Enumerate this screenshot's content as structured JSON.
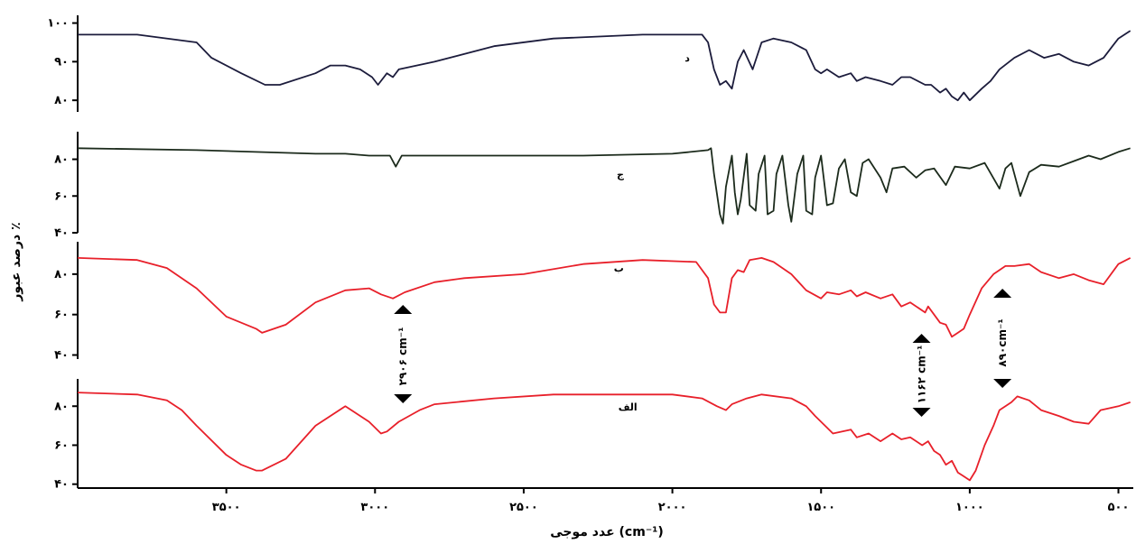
{
  "chart_data": {
    "type": "line",
    "xlabel": "عدد موجی (cm⁻¹)",
    "ylabel": "درصد عبور ٪",
    "xlim": [
      4000,
      450
    ],
    "x_ticks": [
      {
        "value": 3500,
        "label": "۳۵۰۰"
      },
      {
        "value": 3000,
        "label": "۳۰۰۰"
      },
      {
        "value": 2500,
        "label": "۲۵۰۰"
      },
      {
        "value": 2000,
        "label": "۲۰۰۰"
      },
      {
        "value": 1500,
        "label": "۱۵۰۰"
      },
      {
        "value": 1000,
        "label": "۱۰۰۰"
      },
      {
        "value": 500,
        "label": "۵۰۰"
      }
    ],
    "panels": [
      {
        "name": "د",
        "color": "#1c1c3c",
        "ylim": [
          77,
          102
        ],
        "y_ticks": [
          {
            "value": 100,
            "label": "۱۰۰"
          },
          {
            "value": 90,
            "label": "۹۰"
          },
          {
            "value": 80,
            "label": "۸۰"
          }
        ],
        "x": [
          4000,
          3800,
          3600,
          3550,
          3450,
          3370,
          3320,
          3200,
          3150,
          3100,
          3050,
          3010,
          2990,
          2960,
          2940,
          2920,
          2800,
          2600,
          2400,
          2100,
          1900,
          1880,
          1860,
          1840,
          1820,
          1800,
          1780,
          1760,
          1730,
          1700,
          1660,
          1600,
          1550,
          1520,
          1500,
          1480,
          1440,
          1400,
          1380,
          1350,
          1300,
          1260,
          1230,
          1200,
          1150,
          1130,
          1100,
          1080,
          1060,
          1040,
          1020,
          1000,
          960,
          930,
          900,
          850,
          800,
          750,
          700,
          650,
          600,
          550,
          520,
          500,
          460
        ],
        "y": [
          97,
          97,
          95,
          91,
          87,
          84,
          84,
          87,
          89,
          89,
          88,
          86,
          84,
          87,
          86,
          88,
          90,
          94,
          96,
          97,
          97,
          95,
          88,
          84,
          85,
          83,
          90,
          93,
          88,
          95,
          96,
          95,
          93,
          88,
          87,
          88,
          86,
          87,
          85,
          86,
          85,
          84,
          86,
          86,
          84,
          84,
          82,
          83,
          81,
          80,
          82,
          80,
          83,
          85,
          88,
          91,
          93,
          91,
          92,
          90,
          89,
          91,
          94,
          96,
          98
        ]
      },
      {
        "name": "ج",
        "color": "#1c2b1c",
        "ylim": [
          40,
          95
        ],
        "y_ticks": [
          {
            "value": 80,
            "label": "۸۰"
          },
          {
            "value": 60,
            "label": "۶۰"
          },
          {
            "value": 40,
            "label": "۴۰"
          }
        ],
        "x": [
          4000,
          3600,
          3200,
          3100,
          3020,
          2950,
          2930,
          2910,
          2850,
          2600,
          2300,
          2000,
          1880,
          1870,
          1860,
          1840,
          1830,
          1820,
          1800,
          1790,
          1780,
          1770,
          1750,
          1740,
          1720,
          1710,
          1690,
          1680,
          1660,
          1650,
          1630,
          1610,
          1600,
          1580,
          1560,
          1550,
          1530,
          1520,
          1500,
          1480,
          1460,
          1440,
          1420,
          1400,
          1380,
          1360,
          1340,
          1300,
          1280,
          1260,
          1220,
          1180,
          1150,
          1120,
          1080,
          1050,
          1000,
          950,
          900,
          880,
          860,
          830,
          800,
          760,
          700,
          650,
          600,
          560,
          500,
          460
        ],
        "y": [
          86,
          85,
          83,
          83,
          82,
          82,
          76,
          82,
          82,
          82,
          82,
          83,
          85,
          86,
          72,
          50,
          45,
          65,
          82,
          62,
          50,
          58,
          83,
          55,
          52,
          72,
          82,
          50,
          52,
          72,
          82,
          55,
          46,
          72,
          82,
          52,
          50,
          70,
          82,
          55,
          56,
          75,
          80,
          62,
          60,
          78,
          80,
          70,
          62,
          75,
          76,
          70,
          74,
          75,
          66,
          76,
          75,
          78,
          64,
          75,
          78,
          60,
          73,
          77,
          76,
          79,
          82,
          80,
          84,
          86
        ]
      },
      {
        "name": "ب",
        "color": "#e8202a",
        "ylim": [
          38,
          96
        ],
        "y_ticks": [
          {
            "value": 80,
            "label": "۸۰"
          },
          {
            "value": 60,
            "label": "۶۰"
          },
          {
            "value": 40,
            "label": "۴۰"
          }
        ],
        "x": [
          4000,
          3800,
          3700,
          3600,
          3500,
          3400,
          3380,
          3300,
          3200,
          3100,
          3020,
          2980,
          2940,
          2900,
          2800,
          2700,
          2500,
          2300,
          2100,
          1920,
          1880,
          1860,
          1840,
          1820,
          1800,
          1780,
          1760,
          1740,
          1700,
          1660,
          1600,
          1550,
          1500,
          1480,
          1440,
          1400,
          1380,
          1350,
          1300,
          1260,
          1230,
          1200,
          1150,
          1140,
          1100,
          1080,
          1060,
          1040,
          1020,
          1000,
          960,
          920,
          880,
          850,
          800,
          760,
          700,
          650,
          600,
          550,
          500,
          460
        ],
        "y": [
          88,
          87,
          83,
          73,
          59,
          53,
          51,
          55,
          66,
          72,
          73,
          70,
          68,
          71,
          76,
          78,
          80,
          85,
          87,
          86,
          78,
          65,
          61,
          61,
          78,
          82,
          81,
          87,
          88,
          86,
          80,
          72,
          68,
          71,
          70,
          72,
          69,
          71,
          68,
          70,
          64,
          66,
          61,
          64,
          56,
          55,
          49,
          51,
          53,
          60,
          73,
          80,
          84,
          84,
          85,
          81,
          78,
          80,
          77,
          75,
          85,
          88
        ]
      },
      {
        "name": "الف",
        "color": "#e8202a",
        "ylim": [
          38,
          94
        ],
        "y_ticks": [
          {
            "value": 80,
            "label": "۸۰"
          },
          {
            "value": 60,
            "label": "۶۰"
          },
          {
            "value": 40,
            "label": "۴۰"
          }
        ],
        "x": [
          4000,
          3800,
          3700,
          3650,
          3600,
          3500,
          3450,
          3400,
          3380,
          3300,
          3200,
          3100,
          3020,
          2980,
          2960,
          2920,
          2850,
          2800,
          2600,
          2400,
          2200,
          2000,
          1900,
          1850,
          1820,
          1800,
          1750,
          1700,
          1600,
          1550,
          1520,
          1500,
          1460,
          1400,
          1380,
          1340,
          1300,
          1260,
          1230,
          1200,
          1160,
          1140,
          1120,
          1100,
          1080,
          1060,
          1040,
          1020,
          1000,
          980,
          950,
          920,
          900,
          860,
          840,
          800,
          760,
          700,
          650,
          600,
          560,
          500,
          460
        ],
        "y": [
          87,
          86,
          83,
          78,
          70,
          55,
          50,
          47,
          47,
          53,
          70,
          80,
          72,
          66,
          67,
          72,
          78,
          81,
          84,
          86,
          86,
          86,
          84,
          80,
          78,
          81,
          84,
          86,
          84,
          80,
          75,
          72,
          66,
          68,
          64,
          66,
          62,
          66,
          63,
          64,
          60,
          62,
          57,
          55,
          50,
          52,
          46,
          44,
          42,
          47,
          60,
          70,
          78,
          82,
          85,
          83,
          78,
          75,
          72,
          71,
          78,
          80,
          82
        ]
      }
    ],
    "annotations": [
      {
        "label": "۲۹۰۶ cm⁻¹",
        "x": 2906
      },
      {
        "label": "۱۱۶۲ cm⁻¹",
        "x": 1162
      },
      {
        "label": "۸۹۰cm⁻¹",
        "x": 890
      }
    ]
  }
}
